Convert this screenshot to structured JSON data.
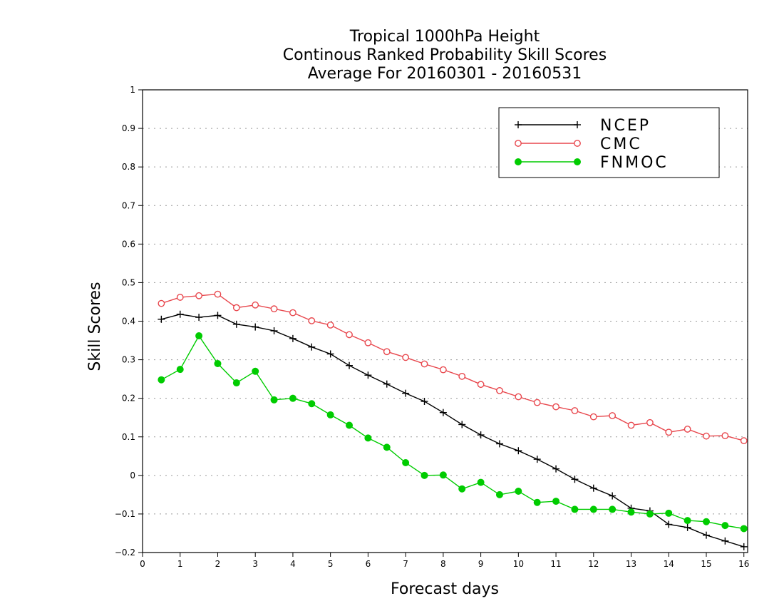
{
  "chart_data": {
    "type": "line",
    "title": [
      "Tropical 1000hPa Height",
      "Continous Ranked Probability Skill Scores",
      "Average For 20160301 - 20160531"
    ],
    "xlabel": "Forecast days",
    "ylabel": "Skill Scores",
    "xlim": [
      0,
      16.1
    ],
    "ylim": [
      -0.2,
      1
    ],
    "xticks": [
      "0",
      "1",
      "2",
      "3",
      "4",
      "5",
      "6",
      "7",
      "8",
      "9",
      "10",
      "11",
      "12",
      "13",
      "14",
      "15",
      "16"
    ],
    "yticks": [
      "−0.2",
      "−0.1",
      "0",
      "0.1",
      "0.2",
      "0.3",
      "0.4",
      "0.5",
      "0.6",
      "0.7",
      "0.8",
      "0.9",
      "1"
    ],
    "grid": true,
    "legend_position": "top-right",
    "x": [
      0.5,
      1,
      1.5,
      2,
      2.5,
      3,
      3.5,
      4,
      4.5,
      5,
      5.5,
      6,
      6.5,
      7,
      7.5,
      8,
      8.5,
      9,
      9.5,
      10,
      10.5,
      11,
      11.5,
      12,
      12.5,
      13,
      13.5,
      14,
      14.5,
      15,
      15.5,
      16
    ],
    "series": [
      {
        "name": "NCEP",
        "color": "#000000",
        "marker": "plus",
        "values": [
          0.405,
          0.418,
          0.41,
          0.415,
          0.392,
          0.385,
          0.375,
          0.355,
          0.333,
          0.315,
          0.285,
          0.26,
          0.237,
          0.213,
          0.192,
          0.163,
          0.132,
          0.105,
          0.082,
          0.064,
          0.042,
          0.017,
          -0.01,
          -0.033,
          -0.053,
          -0.085,
          -0.092,
          -0.127,
          -0.135,
          -0.155,
          -0.17,
          -0.185
        ]
      },
      {
        "name": "CMC",
        "color": "#e8474d",
        "marker": "open-circle",
        "values": [
          0.446,
          0.462,
          0.466,
          0.47,
          0.435,
          0.442,
          0.432,
          0.422,
          0.401,
          0.39,
          0.365,
          0.344,
          0.321,
          0.306,
          0.289,
          0.274,
          0.257,
          0.236,
          0.22,
          0.204,
          0.189,
          0.178,
          0.168,
          0.152,
          0.155,
          0.13,
          0.137,
          0.112,
          0.12,
          0.102,
          0.103,
          0.09
        ]
      },
      {
        "name": "FNMOC",
        "color": "#00cc00",
        "marker": "filled-circle",
        "values": [
          0.248,
          0.275,
          0.362,
          0.29,
          0.24,
          0.27,
          0.196,
          0.2,
          0.186,
          0.157,
          0.13,
          0.097,
          0.073,
          0.033,
          0.0,
          0.001,
          -0.035,
          -0.018,
          -0.05,
          -0.041,
          -0.07,
          -0.067,
          -0.088,
          -0.088,
          -0.088,
          -0.095,
          -0.1,
          -0.098,
          -0.117,
          -0.12,
          -0.13,
          -0.138
        ]
      }
    ]
  }
}
